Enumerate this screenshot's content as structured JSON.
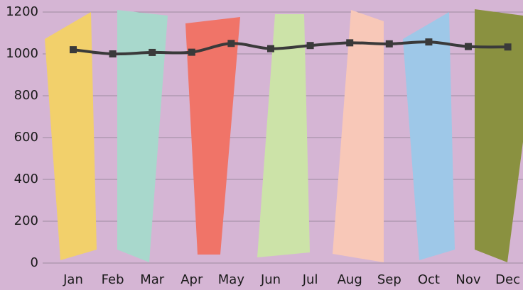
{
  "chart_data": {
    "type": "line",
    "categories": [
      "Jan",
      "Feb",
      "Mar",
      "Apr",
      "May",
      "Jun",
      "Jul",
      "Aug",
      "Sep",
      "Oct",
      "Nov",
      "Dec"
    ],
    "series": [
      {
        "color": "#3a3a3a",
        "values": [
          1020,
          1000,
          1007,
          1008,
          1050,
          1025,
          1040,
          1053,
          1048,
          1057,
          1035,
          1033
        ]
      }
    ],
    "ylim": [
      0,
      1200
    ],
    "yticks": [
      0,
      200,
      400,
      600,
      800,
      1000,
      1200
    ],
    "grid": true
  }
}
